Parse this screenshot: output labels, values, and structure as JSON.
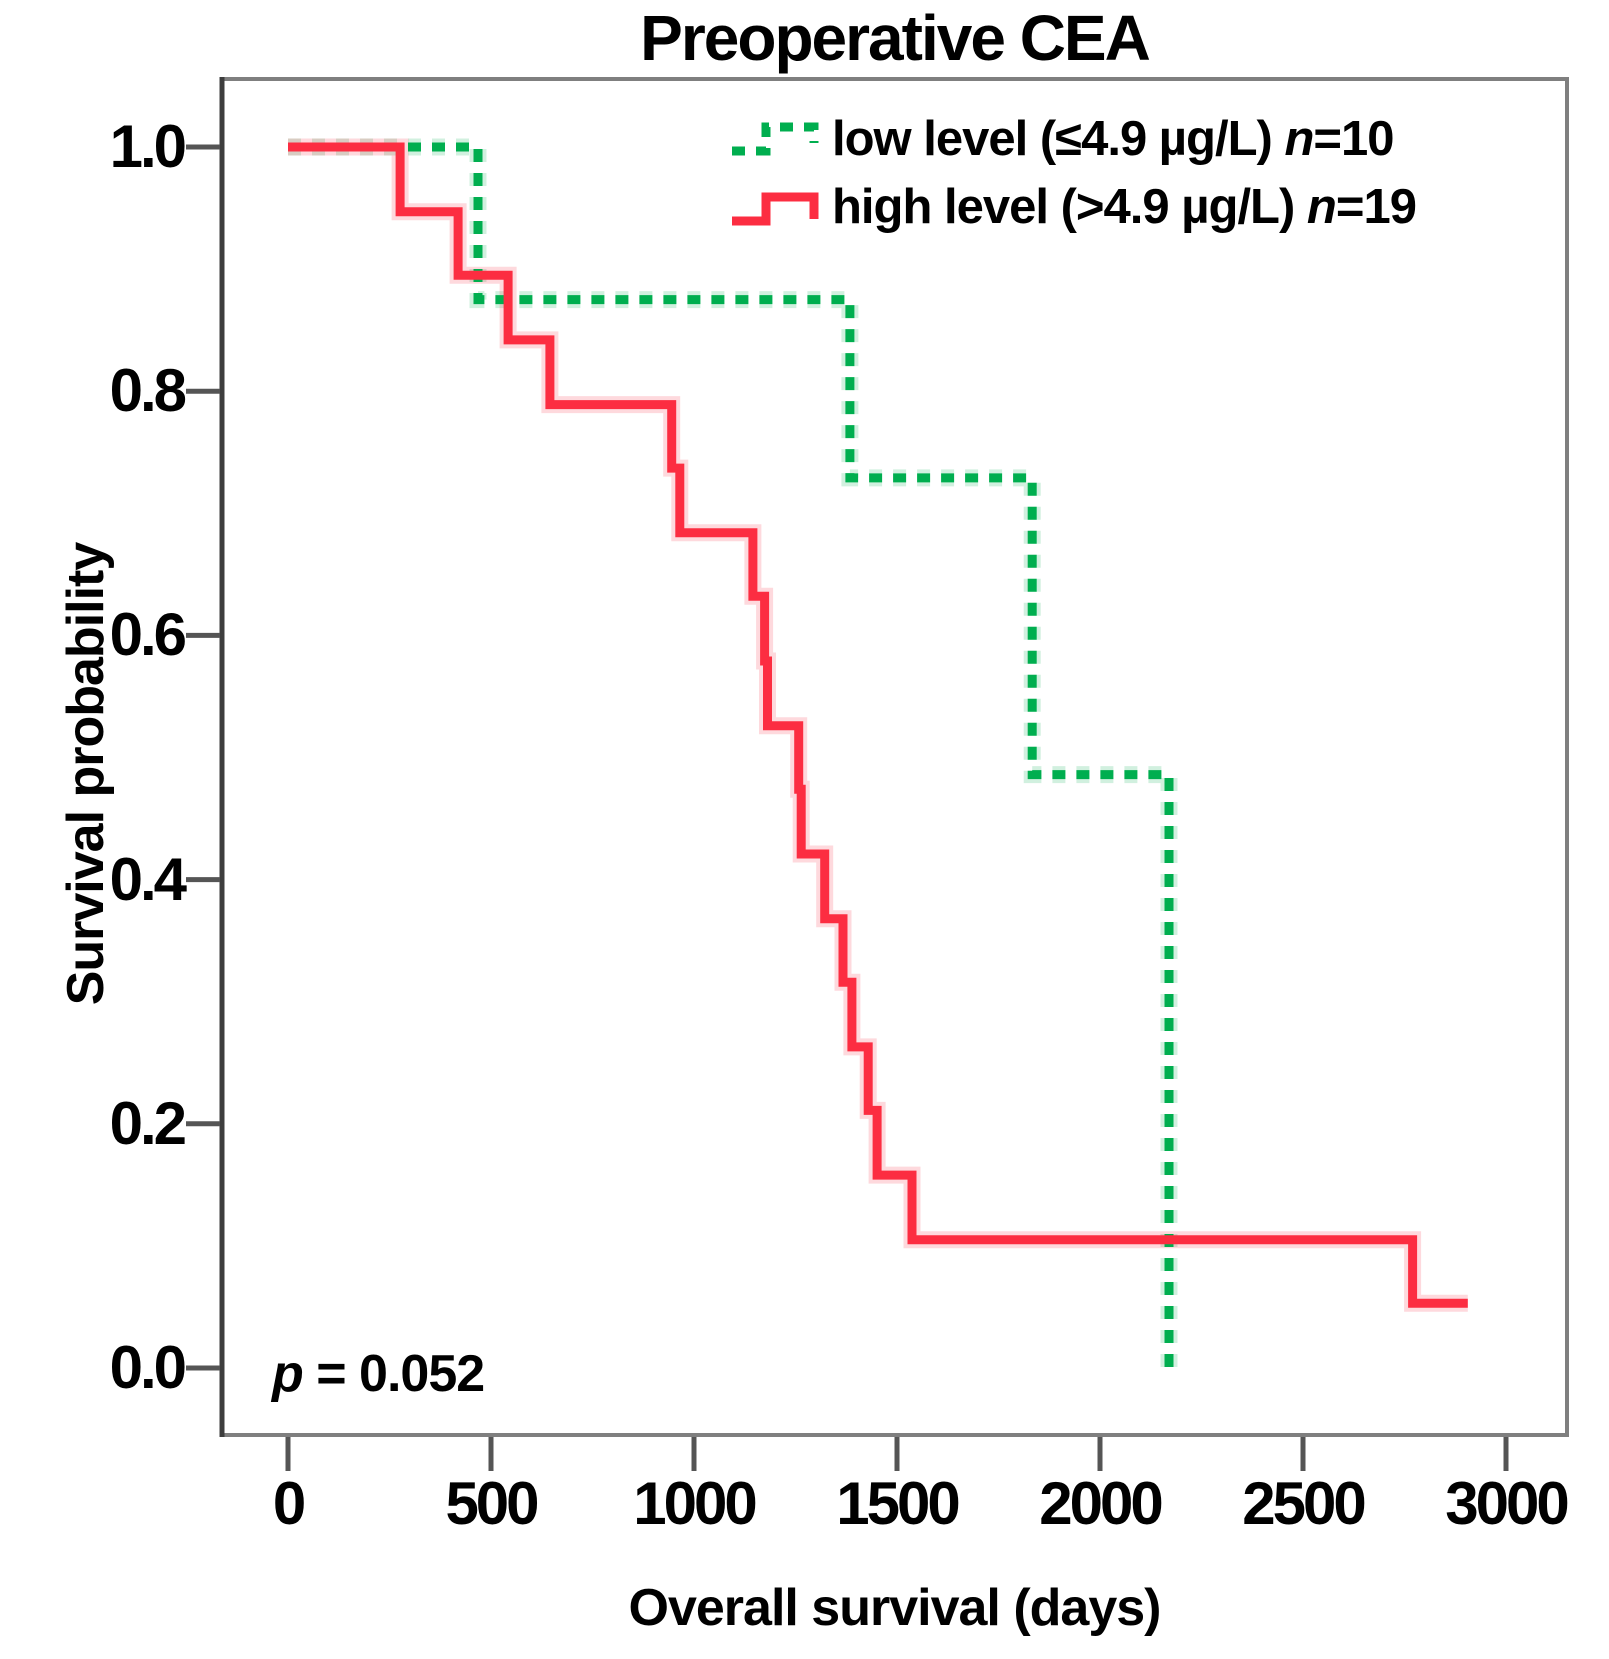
{
  "title": "Preoperative CEA",
  "x_axis": {
    "label": "Overall survival (days)",
    "ticks": [
      {
        "label": "0",
        "value": 0
      },
      {
        "label": "500",
        "value": 500
      },
      {
        "label": "1000",
        "value": 1000
      },
      {
        "label": "1500",
        "value": 1500
      },
      {
        "label": "2000",
        "value": 2000
      },
      {
        "label": "2500",
        "value": 2500
      },
      {
        "label": "3000",
        "value": 3000
      }
    ]
  },
  "y_axis": {
    "label": "Survival probability",
    "ticks": [
      {
        "label": "1.0",
        "value": 1.0
      },
      {
        "label": "0.8",
        "value": 0.8
      },
      {
        "label": "0.6",
        "value": 0.6
      },
      {
        "label": "0.4",
        "value": 0.4
      },
      {
        "label": "0.2",
        "value": 0.2
      },
      {
        "label": "0.0",
        "value": 0.0
      }
    ]
  },
  "annotation": {
    "p_symbol": "p",
    "p_rest": " = 0.052"
  },
  "legend": [
    {
      "label_main": "low level (≤4.9 µg/L) ",
      "n_symbol": "n",
      "n_value": "=10",
      "color": "#00ae4f",
      "style": "dotted"
    },
    {
      "label_main": "high level (>4.9 µg/L) ",
      "n_symbol": "n",
      "n_value": "=19",
      "color": "#fc2d41",
      "style": "solid"
    }
  ],
  "chart_data": {
    "type": "line",
    "subtype": "kaplan-meier-step",
    "title": "Preoperative CEA",
    "xlabel": "Overall survival (days)",
    "ylabel": "Survival probability",
    "xlim": [
      0,
      3150
    ],
    "ylim": [
      0.0,
      1.05
    ],
    "grid": false,
    "legend_position": "top-right",
    "p_value_text": "p = 0.052",
    "series": [
      {
        "name": "low level (≤4.9 µg/L) n=10",
        "n": 10,
        "color": "#00ae4f",
        "line": "dotted",
        "points_day_survival": [
          [
            0,
            1.0
          ],
          [
            468,
            0.875
          ],
          [
            1384,
            0.729
          ],
          [
            1833,
            0.486
          ],
          [
            2170,
            0.0
          ]
        ],
        "end_day": 2170
      },
      {
        "name": "high level (>4.9 µg/L) n=19",
        "n": 19,
        "color": "#fc2d41",
        "line": "solid",
        "points_day_survival": [
          [
            0,
            1.0
          ],
          [
            276,
            0.947
          ],
          [
            419,
            0.895
          ],
          [
            542,
            0.842
          ],
          [
            645,
            0.789
          ],
          [
            945,
            0.737
          ],
          [
            965,
            0.684
          ],
          [
            1145,
            0.632
          ],
          [
            1174,
            0.579
          ],
          [
            1181,
            0.526
          ],
          [
            1258,
            0.474
          ],
          [
            1264,
            0.421
          ],
          [
            1322,
            0.368
          ],
          [
            1367,
            0.316
          ],
          [
            1389,
            0.263
          ],
          [
            1429,
            0.211
          ],
          [
            1451,
            0.158
          ],
          [
            1537,
            0.105
          ],
          [
            2770,
            0.053
          ]
        ],
        "end_day": 2906
      }
    ]
  }
}
